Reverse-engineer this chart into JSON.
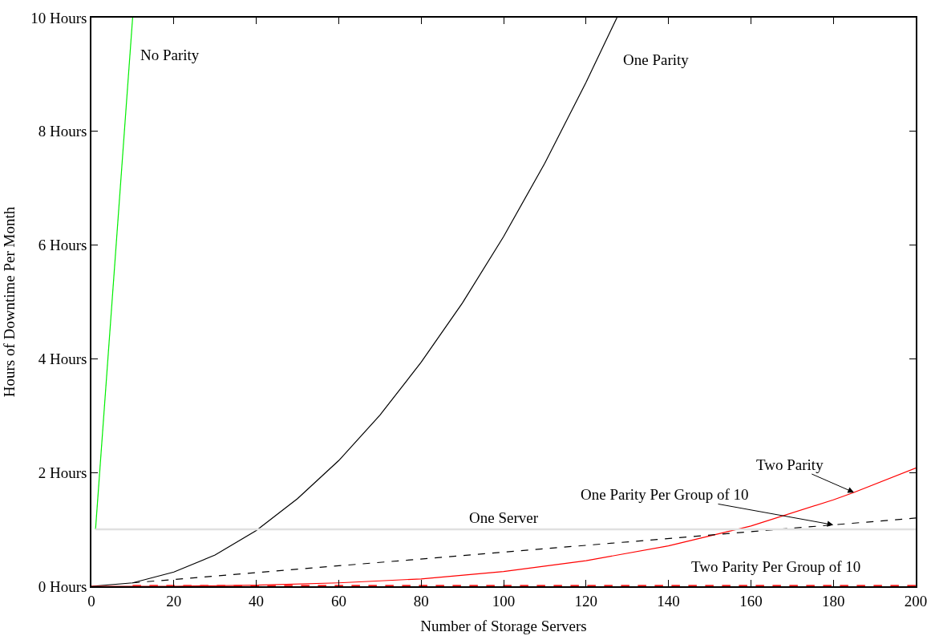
{
  "chart_data": {
    "type": "line",
    "xlabel": "Number of Storage Servers",
    "ylabel": "Hours of Downtime Per Month",
    "xlim": [
      0,
      200
    ],
    "xticks": [
      0,
      20,
      40,
      60,
      80,
      100,
      120,
      140,
      160,
      180,
      200
    ],
    "ylim": [
      0,
      10
    ],
    "yticks": [
      {
        "value": 0,
        "label": "0 Hours"
      },
      {
        "value": 2,
        "label": "2 Hours"
      },
      {
        "value": 4,
        "label": "4 Hours"
      },
      {
        "value": 6,
        "label": "6 Hours"
      },
      {
        "value": 8,
        "label": "8 Hours"
      },
      {
        "value": 10,
        "label": "10 Hours"
      }
    ],
    "grid": false,
    "legend": false,
    "marker": "none",
    "series": [
      {
        "name": "No Parity",
        "color": "#00ee00",
        "line_style": "solid",
        "x": [
          1,
          10
        ],
        "values": [
          1,
          10
        ]
      },
      {
        "name": "One Parity",
        "color": "#000000",
        "line_style": "solid",
        "x": [
          0,
          10,
          20,
          30,
          40,
          50,
          60,
          70,
          80,
          90,
          100,
          110,
          120,
          127.5
        ],
        "values": [
          0,
          0.06,
          0.25,
          0.55,
          0.98,
          1.54,
          2.21,
          3.01,
          3.94,
          4.98,
          6.15,
          7.44,
          8.86,
          10
        ]
      },
      {
        "name": "Two Parity",
        "color": "#ff0000",
        "line_style": "solid",
        "x": [
          0,
          20,
          40,
          60,
          80,
          100,
          120,
          140,
          160,
          180,
          185,
          200
        ],
        "values": [
          0,
          0,
          0.02,
          0.06,
          0.13,
          0.26,
          0.45,
          0.71,
          1.06,
          1.52,
          1.65,
          2.08
        ]
      },
      {
        "name": "One Parity Per Group of 10",
        "color": "#000000",
        "line_style": "dashed",
        "x": [
          10,
          180,
          200
        ],
        "values": [
          0.06,
          1.08,
          1.2
        ]
      },
      {
        "name": "One Server",
        "color": "#e0e0e0",
        "line_style": "solid",
        "x": [
          1,
          200
        ],
        "values": [
          1,
          1
        ]
      },
      {
        "name": "Two Parity Per Group of 10",
        "color": "#ff2020",
        "line_style": "dashed",
        "x": [
          10,
          200
        ],
        "values": [
          0,
          0
        ]
      }
    ]
  }
}
